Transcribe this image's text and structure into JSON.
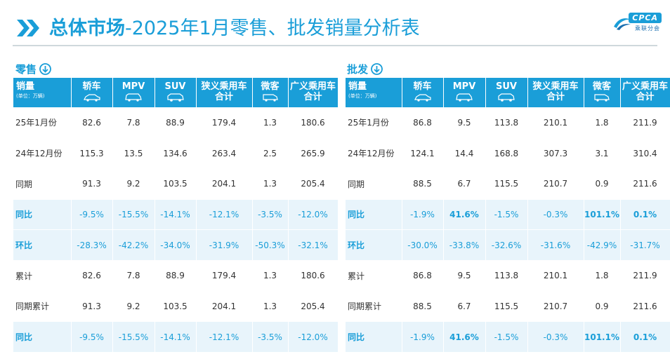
{
  "header": {
    "title_bold": "总体市场",
    "title_rest": "-2025年1月零售、批发销量分析表",
    "logo_text": "CPCA",
    "logo_sub": "乘联分会"
  },
  "colors": {
    "accent": "#1a9ed8",
    "highlight_row": "#e8f4fb",
    "text": "#333333"
  },
  "columns": {
    "sales": "销量",
    "unit": "(单位：万辆)",
    "sedan": "轿车",
    "mpv": "MPV",
    "suv": "SUV",
    "narrow_line1": "狭义乘用车",
    "narrow_line2": "合计",
    "micro": "微客",
    "broad_line1": "广义乘用车",
    "broad_line2": "合计"
  },
  "retail": {
    "label": "零售",
    "rows": [
      {
        "name": "25年1月份",
        "values": [
          "82.6",
          "7.8",
          "88.9",
          "179.4",
          "1.3",
          "180.6"
        ]
      },
      {
        "name": "24年12月份",
        "values": [
          "115.3",
          "13.5",
          "134.6",
          "263.4",
          "2.5",
          "265.9"
        ]
      },
      {
        "name": "同期",
        "values": [
          "91.3",
          "9.2",
          "103.5",
          "204.1",
          "1.3",
          "205.4"
        ]
      },
      {
        "name": "同比",
        "values": [
          "-9.5%",
          "-15.5%",
          "-14.1%",
          "-12.1%",
          "-3.5%",
          "-12.0%"
        ]
      },
      {
        "name": "环比",
        "values": [
          "-28.3%",
          "-42.2%",
          "-34.0%",
          "-31.9%",
          "-50.3%",
          "-32.1%"
        ]
      },
      {
        "name": "累计",
        "values": [
          "82.6",
          "7.8",
          "88.9",
          "179.4",
          "1.3",
          "180.6"
        ]
      },
      {
        "name": "同期累计",
        "values": [
          "91.3",
          "9.2",
          "103.5",
          "204.1",
          "1.3",
          "205.4"
        ]
      },
      {
        "name": "同比",
        "values": [
          "-9.5%",
          "-15.5%",
          "-14.1%",
          "-12.1%",
          "-3.5%",
          "-12.0%"
        ]
      }
    ]
  },
  "wholesale": {
    "label": "批发",
    "rows": [
      {
        "name": "25年1月份",
        "values": [
          "86.8",
          "9.5",
          "113.8",
          "210.1",
          "1.8",
          "211.9"
        ]
      },
      {
        "name": "24年12月份",
        "values": [
          "124.1",
          "14.4",
          "168.8",
          "307.3",
          "3.1",
          "310.4"
        ]
      },
      {
        "name": "同期",
        "values": [
          "88.5",
          "6.7",
          "115.5",
          "210.7",
          "0.9",
          "211.6"
        ]
      },
      {
        "name": "同比",
        "values": [
          "-1.9%",
          "41.6%",
          "-1.5%",
          "-0.3%",
          "101.1%",
          "0.1%"
        ]
      },
      {
        "name": "环比",
        "values": [
          "-30.0%",
          "-33.8%",
          "-32.6%",
          "-31.6%",
          "-42.9%",
          "-31.7%"
        ]
      },
      {
        "name": "累计",
        "values": [
          "86.8",
          "9.5",
          "113.8",
          "210.1",
          "1.8",
          "211.9"
        ]
      },
      {
        "name": "同期累计",
        "values": [
          "88.5",
          "6.7",
          "115.5",
          "210.7",
          "0.9",
          "211.6"
        ]
      },
      {
        "name": "同比",
        "values": [
          "-1.9%",
          "41.6%",
          "-1.5%",
          "-0.3%",
          "101.1%",
          "0.1%"
        ]
      }
    ]
  }
}
